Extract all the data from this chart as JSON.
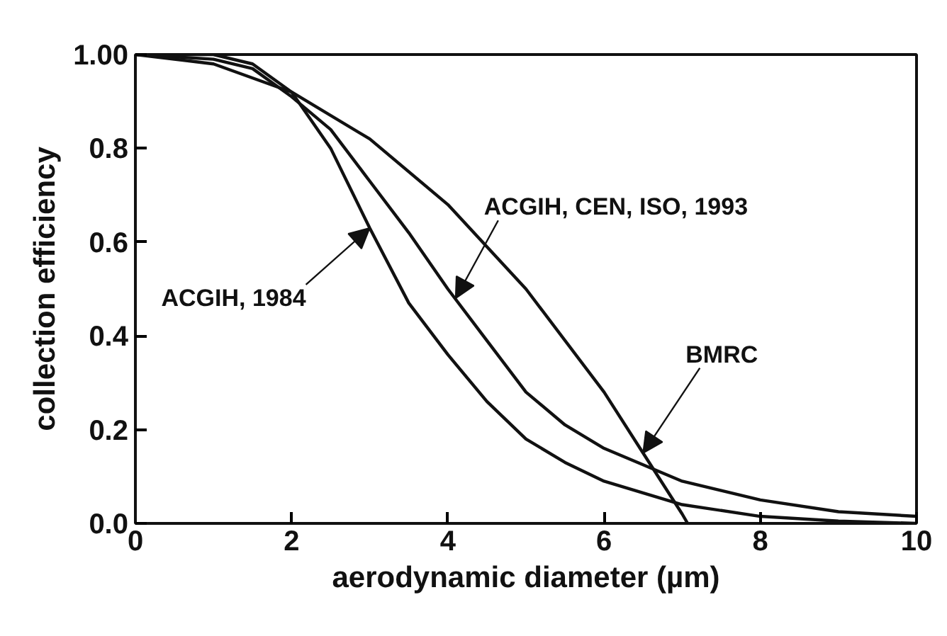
{
  "chart_data": {
    "type": "line",
    "xlabel": "aerodynamic diameter (µm)",
    "ylabel": "collection efficiency",
    "xlim": [
      0,
      10
    ],
    "ylim": [
      0,
      1
    ],
    "xticks": [
      0,
      2,
      4,
      6,
      8,
      10
    ],
    "yticks": [
      {
        "value": 0,
        "label": "0.0"
      },
      {
        "value": 0.2,
        "label": "0.2"
      },
      {
        "value": 0.4,
        "label": "0.4"
      },
      {
        "value": 0.6,
        "label": "0.6"
      },
      {
        "value": 0.8,
        "label": "0.8"
      },
      {
        "value": 1,
        "label": "1.00"
      }
    ],
    "grid": false,
    "marker": "none",
    "line_style": "solid",
    "series": [
      {
        "color": "#111111",
        "x": [
          0,
          1,
          1.5,
          2,
          2.5,
          3,
          3.5,
          4,
          4.5,
          5,
          5.5,
          6,
          7,
          8,
          9,
          10
        ],
        "values": [
          1.0,
          1.0,
          0.98,
          0.92,
          0.8,
          0.63,
          0.47,
          0.36,
          0.26,
          0.18,
          0.13,
          0.09,
          0.04,
          0.015,
          0.005,
          0.0
        ]
      },
      {
        "color": "#111111",
        "x": [
          0,
          1,
          1.5,
          2,
          2.5,
          3,
          3.5,
          4,
          4.5,
          5,
          5.5,
          6,
          7,
          8,
          9,
          10
        ],
        "values": [
          1.0,
          0.99,
          0.97,
          0.91,
          0.84,
          0.73,
          0.62,
          0.5,
          0.39,
          0.28,
          0.21,
          0.16,
          0.09,
          0.05,
          0.025,
          0.015
        ]
      },
      {
        "color": "#111111",
        "x": [
          0,
          1,
          2,
          3,
          4,
          5,
          6,
          6.5,
          7,
          7.07
        ],
        "values": [
          1.0,
          0.98,
          0.92,
          0.82,
          0.68,
          0.5,
          0.28,
          0.15,
          0.02,
          0.0
        ]
      }
    ],
    "annotations": [
      {
        "text": "ACGIH, 1984",
        "x": 3.0,
        "y": 0.63
      },
      {
        "text": "ACGIH, CEN, ISO, 1993",
        "x": 4.1,
        "y": 0.48
      },
      {
        "text": "BMRC",
        "x": 6.5,
        "y": 0.15
      }
    ]
  }
}
